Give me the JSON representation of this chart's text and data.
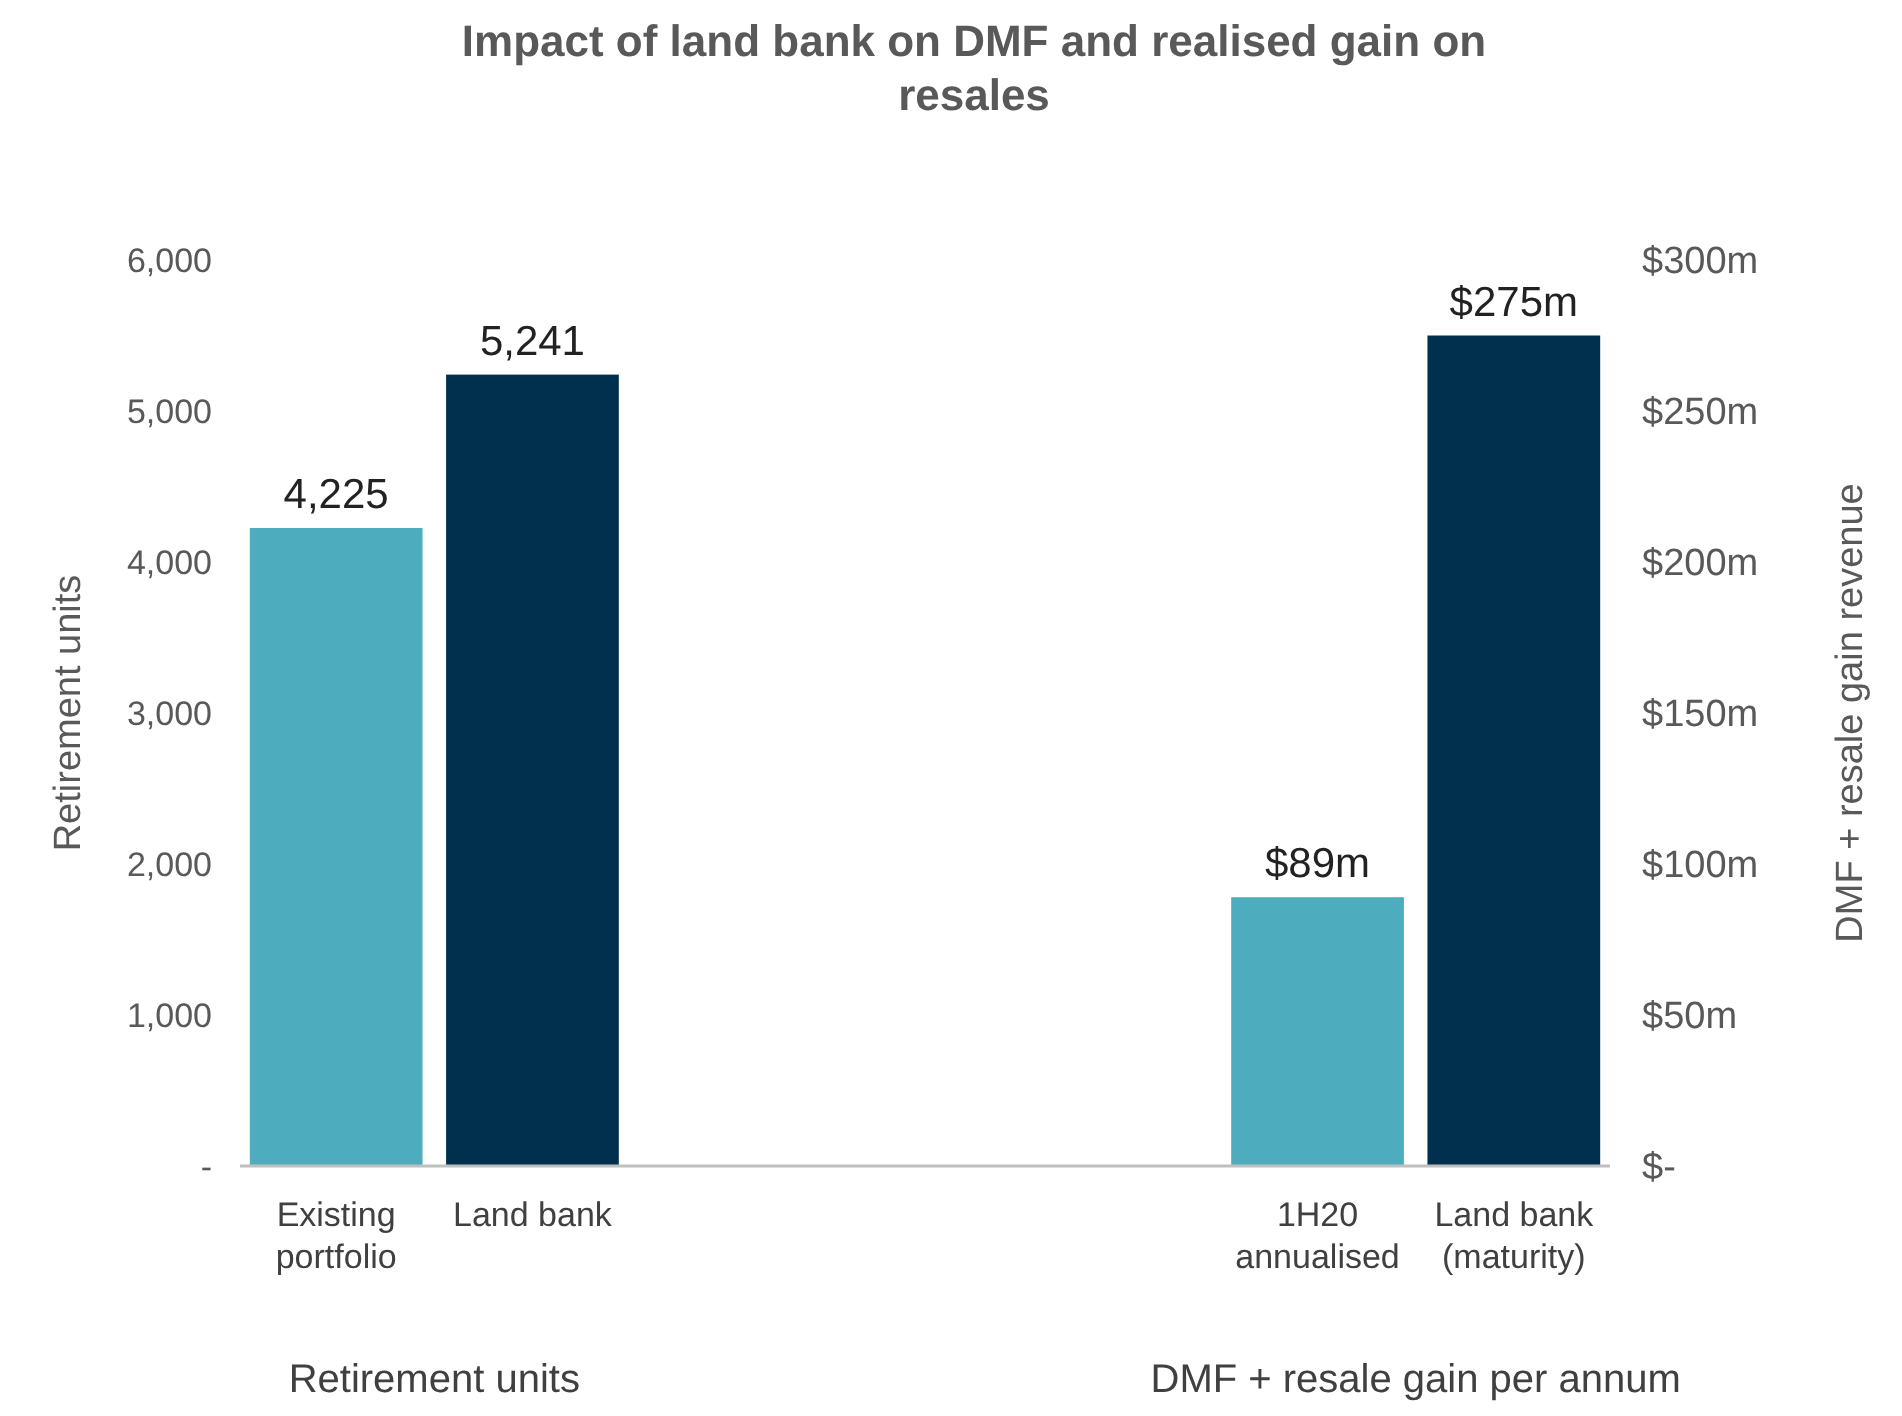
{
  "chart_data": {
    "type": "bar",
    "title": "Impact of land bank on DMF and realised gain on resales",
    "categories": [
      "Existing portfolio",
      "Land bank",
      null,
      null,
      null,
      "1H20 annualised",
      "Land bank (maturity)"
    ],
    "series": [
      {
        "colors": [
          "#4eacbf",
          "#00304d",
          null,
          null,
          null,
          null,
          null
        ],
        "values": [
          4225,
          5241,
          null,
          null,
          null,
          null,
          null
        ],
        "value_labels": [
          "4,225",
          "5,241",
          null,
          null,
          null,
          null,
          null
        ]
      },
      {
        "axis": "y2",
        "colors": [
          null,
          null,
          null,
          null,
          null,
          "#4eacbf",
          "#00304d"
        ],
        "values": [
          null,
          null,
          null,
          null,
          null,
          89,
          275
        ],
        "value_labels": [
          null,
          null,
          null,
          null,
          null,
          "$89m",
          "$275m"
        ]
      }
    ],
    "ylabel": "Retirement units",
    "y2label": "DMF + resale gain revenue",
    "ylim": [
      0,
      6000
    ],
    "yticks": [
      {
        "value": 0,
        "label": "-"
      },
      {
        "value": 1000,
        "label": "1,000"
      },
      {
        "value": 2000,
        "label": "2,000"
      },
      {
        "value": 3000,
        "label": "3,000"
      },
      {
        "value": 4000,
        "label": "4,000"
      },
      {
        "value": 5000,
        "label": "5,000"
      },
      {
        "value": 6000,
        "label": "6,000"
      }
    ],
    "y2lim": [
      0,
      300
    ],
    "y2ticks": [
      {
        "value": 0,
        "label": "$-"
      },
      {
        "value": 50,
        "label": "$50m"
      },
      {
        "value": 100,
        "label": "$100m"
      },
      {
        "value": 150,
        "label": "$150m"
      },
      {
        "value": 200,
        "label": "$200m"
      },
      {
        "value": 250,
        "label": "$250m"
      },
      {
        "value": 300,
        "label": "$300m"
      }
    ],
    "annotations": [
      "Retirement units",
      "DMF + resale gain per annum"
    ],
    "grid": false
  }
}
